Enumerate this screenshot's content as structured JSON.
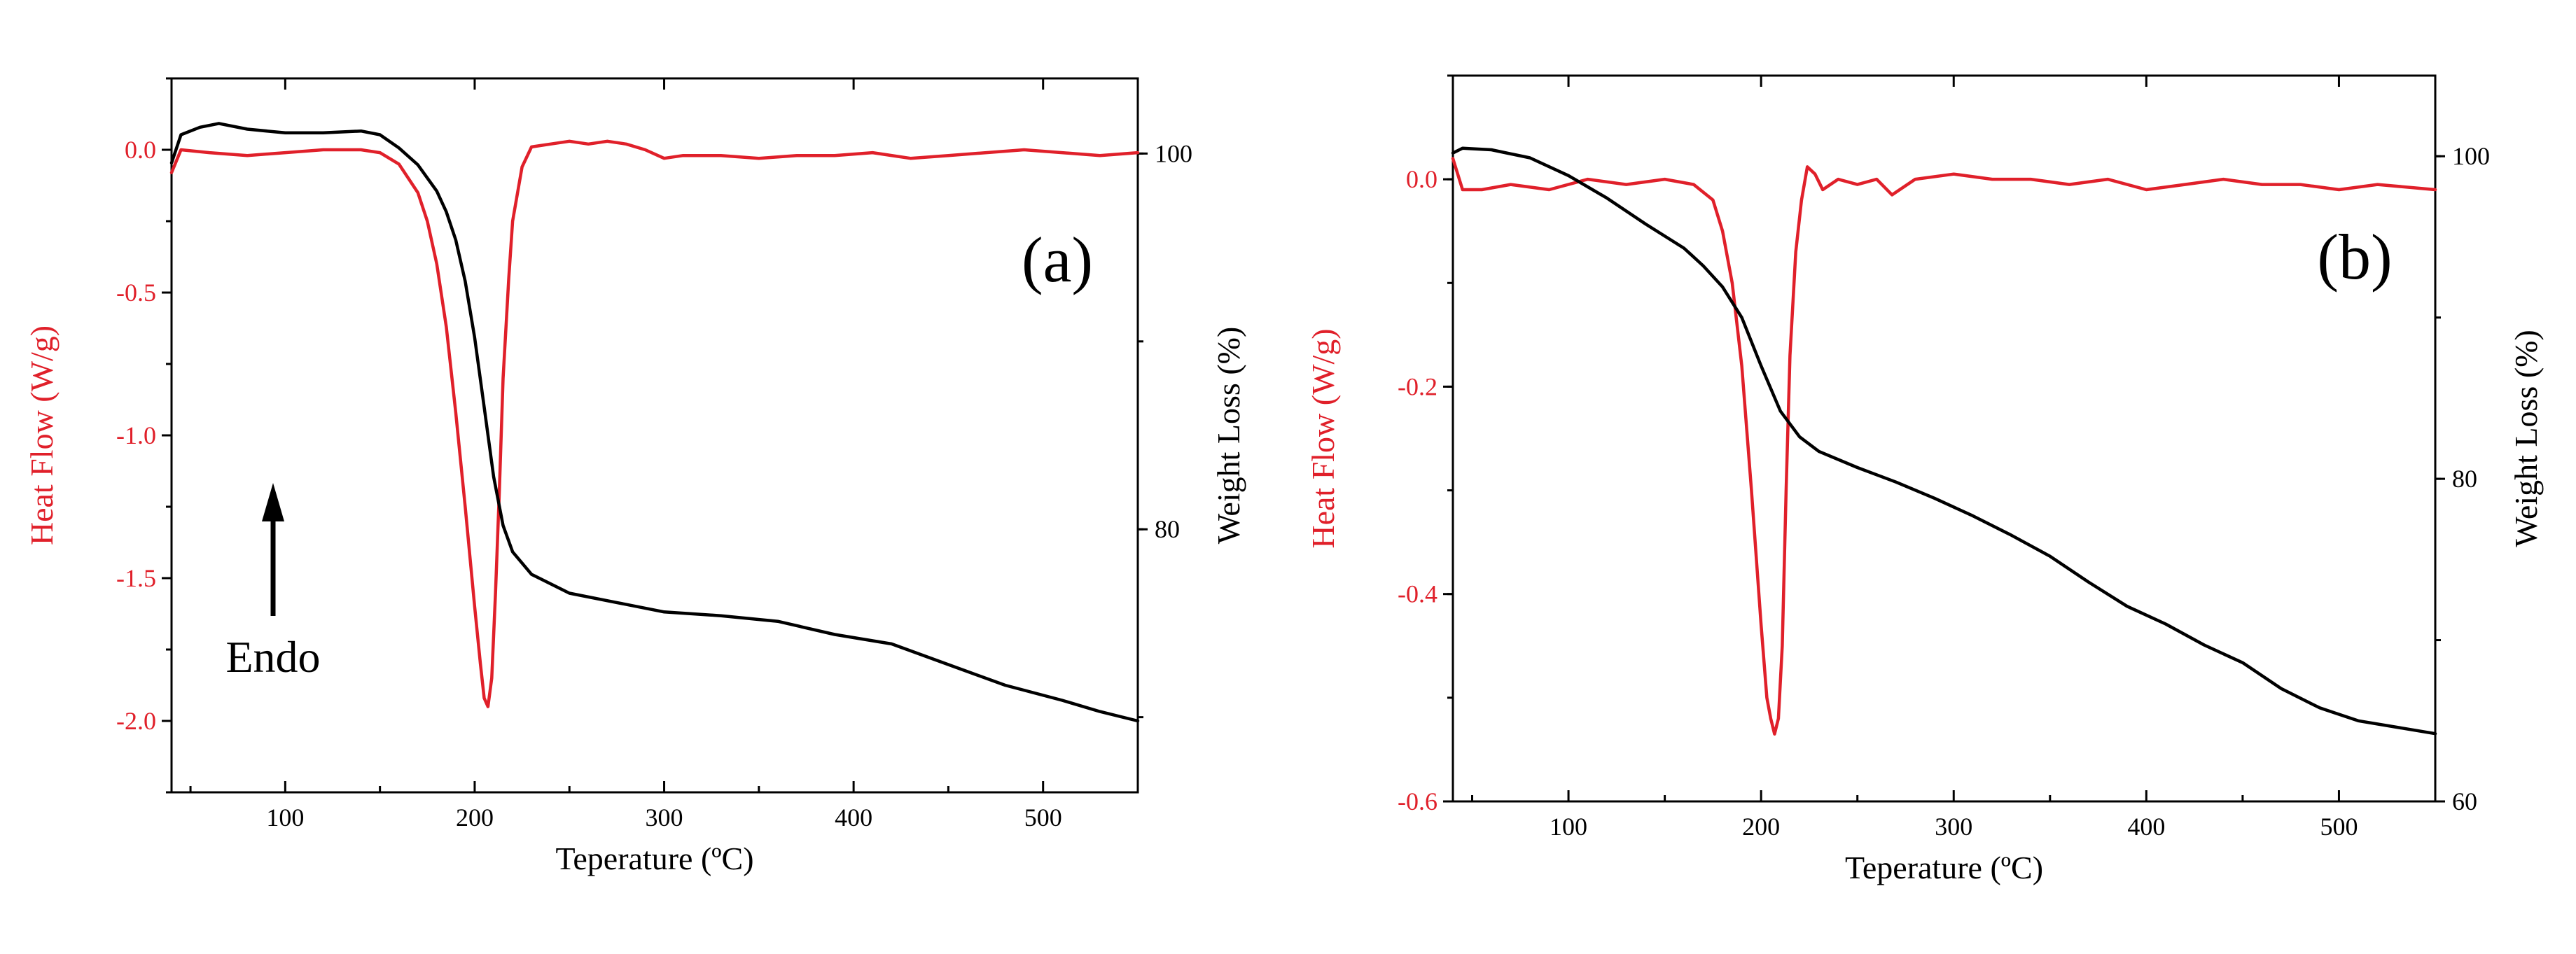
{
  "figure": {
    "colors": {
      "heat_flow": "#e0202a",
      "weight_loss": "#000000"
    }
  },
  "chart_data": [
    {
      "type": "line",
      "panel_label": "(a)",
      "xlabel": "Teperature (ºC)",
      "ylabel_left": "Heat Flow (W/g)",
      "ylabel_right": "Weight Loss (%)",
      "xlim": [
        40,
        550
      ],
      "ylim_left": [
        -2.25,
        0.25
      ],
      "ylim_right": [
        66,
        104
      ],
      "x_ticks": [
        100,
        200,
        300,
        400,
        500
      ],
      "x_tick_labels": [
        "100",
        "200",
        "300",
        "400",
        "500"
      ],
      "y_left_ticks": [
        0.0,
        -0.5,
        -1.0,
        -1.5,
        -2.0
      ],
      "y_left_tick_labels": [
        "0.0",
        "-0.5",
        "-1.0",
        "-1.5",
        "-2.0"
      ],
      "y_right_ticks": [
        100,
        80
      ],
      "y_right_tick_labels": [
        "100",
        "80"
      ],
      "annotation": {
        "text": "Endo",
        "arrow": "up"
      },
      "series": [
        {
          "name": "Heat Flow",
          "axis": "left",
          "color": "#e0202a",
          "x": [
            40,
            45,
            60,
            80,
            100,
            120,
            140,
            150,
            160,
            170,
            175,
            180,
            185,
            190,
            195,
            200,
            203,
            205,
            207,
            209,
            211,
            213,
            215,
            218,
            220,
            225,
            230,
            240,
            250,
            260,
            270,
            280,
            290,
            300,
            310,
            330,
            350,
            370,
            390,
            410,
            430,
            450,
            470,
            490,
            510,
            530,
            550
          ],
          "y": [
            -0.08,
            0.0,
            -0.01,
            -0.02,
            -0.01,
            0.0,
            0.0,
            -0.01,
            -0.05,
            -0.15,
            -0.25,
            -0.4,
            -0.62,
            -0.92,
            -1.25,
            -1.6,
            -1.8,
            -1.92,
            -1.95,
            -1.85,
            -1.55,
            -1.2,
            -0.8,
            -0.45,
            -0.25,
            -0.06,
            0.01,
            0.02,
            0.03,
            0.02,
            0.03,
            0.02,
            0.0,
            -0.03,
            -0.02,
            -0.02,
            -0.03,
            -0.02,
            -0.02,
            -0.01,
            -0.03,
            -0.02,
            -0.01,
            0.0,
            -0.01,
            -0.02,
            -0.01
          ]
        },
        {
          "name": "Weight Loss",
          "axis": "right",
          "color": "#000000",
          "x": [
            40,
            45,
            55,
            65,
            80,
            100,
            120,
            140,
            150,
            160,
            170,
            180,
            185,
            190,
            195,
            200,
            205,
            210,
            215,
            220,
            230,
            250,
            275,
            300,
            330,
            360,
            390,
            420,
            450,
            480,
            510,
            530,
            550
          ],
          "y": [
            99.5,
            101.0,
            101.4,
            101.6,
            101.3,
            101.1,
            101.1,
            101.2,
            101.0,
            100.3,
            99.4,
            98.0,
            96.9,
            95.4,
            93.2,
            90.2,
            86.5,
            82.8,
            80.2,
            78.8,
            77.6,
            76.6,
            76.1,
            75.6,
            75.4,
            75.1,
            74.4,
            73.9,
            72.8,
            71.7,
            70.9,
            70.3,
            69.8
          ]
        }
      ]
    },
    {
      "type": "line",
      "panel_label": "(b)",
      "xlabel": "Teperature (ºC)",
      "ylabel_left": "Heat Flow (W/g)",
      "ylabel_right": "Weight Loss (%)",
      "xlim": [
        40,
        550
      ],
      "ylim_left": [
        -0.6,
        0.1
      ],
      "ylim_right": [
        60,
        105
      ],
      "x_ticks": [
        100,
        200,
        300,
        400,
        500
      ],
      "x_tick_labels": [
        "100",
        "200",
        "300",
        "400",
        "500"
      ],
      "y_left_ticks": [
        0.0,
        -0.2,
        -0.4,
        -0.6
      ],
      "y_left_tick_labels": [
        "0.0",
        "-0.2",
        "-0.4",
        "-0.6"
      ],
      "y_right_ticks": [
        100,
        80,
        60
      ],
      "y_right_tick_labels": [
        "100",
        "80",
        "60"
      ],
      "series": [
        {
          "name": "Heat Flow",
          "axis": "left",
          "color": "#e0202a",
          "x": [
            40,
            45,
            55,
            70,
            90,
            110,
            130,
            150,
            165,
            175,
            180,
            185,
            190,
            195,
            200,
            203,
            205,
            207,
            209,
            211,
            213,
            215,
            218,
            221,
            224,
            228,
            232,
            240,
            250,
            260,
            268,
            280,
            300,
            320,
            340,
            360,
            380,
            400,
            420,
            440,
            460,
            480,
            500,
            520,
            550
          ],
          "y": [
            0.02,
            -0.01,
            -0.01,
            -0.005,
            -0.01,
            0.0,
            -0.005,
            0.0,
            -0.005,
            -0.02,
            -0.05,
            -0.1,
            -0.18,
            -0.3,
            -0.43,
            -0.5,
            -0.52,
            -0.535,
            -0.52,
            -0.45,
            -0.3,
            -0.17,
            -0.07,
            -0.02,
            0.012,
            0.005,
            -0.01,
            0.0,
            -0.005,
            0.0,
            -0.015,
            0.0,
            0.005,
            0.0,
            0.0,
            -0.005,
            0.0,
            -0.01,
            -0.005,
            0.0,
            -0.005,
            -0.005,
            -0.01,
            -0.005,
            -0.01
          ]
        },
        {
          "name": "Weight Loss",
          "axis": "right",
          "color": "#000000",
          "x": [
            40,
            45,
            60,
            80,
            100,
            120,
            140,
            160,
            170,
            180,
            190,
            200,
            210,
            220,
            230,
            250,
            270,
            290,
            310,
            330,
            350,
            370,
            390,
            410,
            430,
            450,
            470,
            490,
            510,
            530,
            550
          ],
          "y": [
            100.2,
            100.5,
            100.4,
            99.9,
            98.8,
            97.4,
            95.8,
            94.3,
            93.2,
            91.9,
            90.0,
            87.0,
            84.2,
            82.6,
            81.7,
            80.7,
            79.8,
            78.8,
            77.7,
            76.5,
            75.2,
            73.6,
            72.1,
            71.0,
            69.7,
            68.6,
            67.0,
            65.8,
            65.0,
            64.6,
            64.2
          ]
        }
      ]
    }
  ]
}
